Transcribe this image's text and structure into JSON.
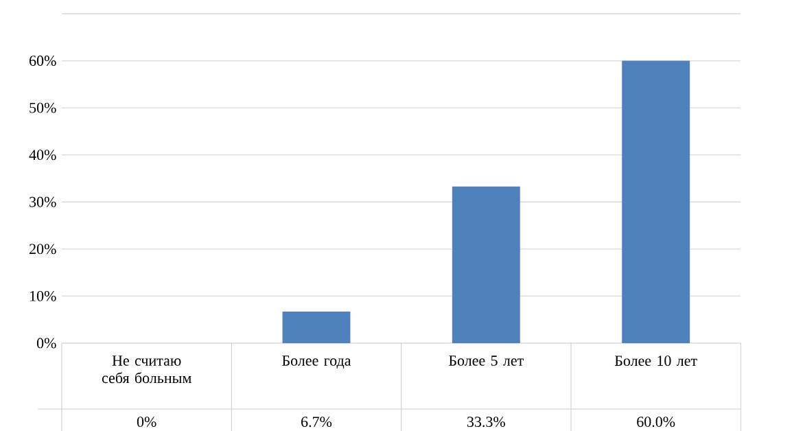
{
  "chart_data": {
    "type": "bar",
    "categories": [
      "Не считаю себя больным",
      "Более года",
      "Более 5 лет",
      "Более 10 лет"
    ],
    "values": [
      0,
      6.7,
      33.3,
      60.0
    ],
    "value_labels": [
      "0%",
      "6.7%",
      "33.3%",
      "60.0%"
    ],
    "color": "#4f81bd",
    "ylim": [
      0,
      70
    ],
    "yticks": [
      {
        "value": 0,
        "label": "0%"
      },
      {
        "value": 10,
        "label": "10%"
      },
      {
        "value": 20,
        "label": "20%"
      },
      {
        "value": 30,
        "label": "30%"
      },
      {
        "value": 40,
        "label": "40%"
      },
      {
        "value": 50,
        "label": "50%"
      },
      {
        "value": 60,
        "label": "60%"
      },
      {
        "value": 70,
        "label": null
      }
    ],
    "grid": "y"
  }
}
